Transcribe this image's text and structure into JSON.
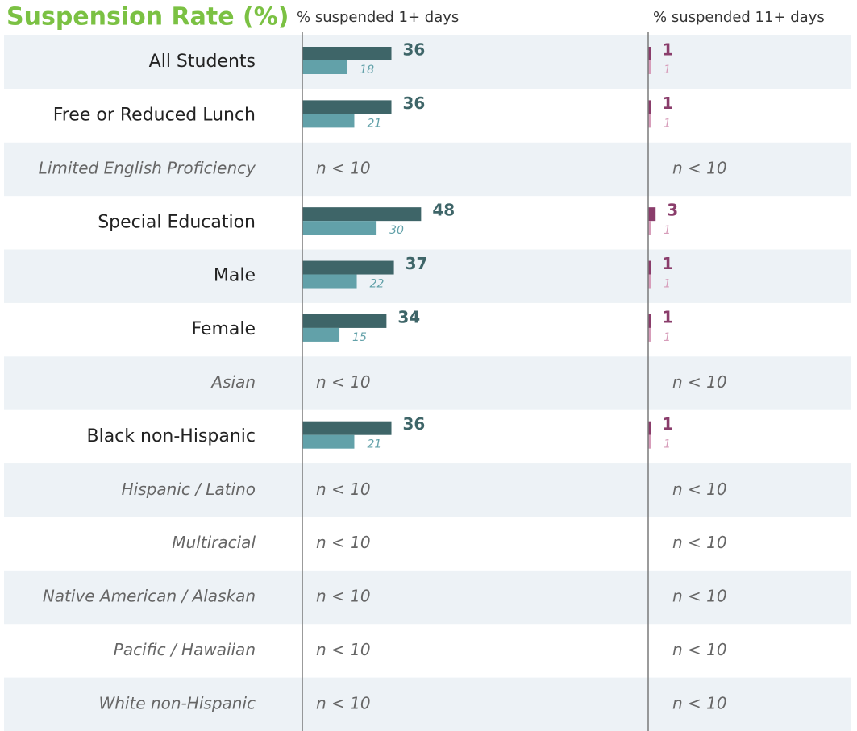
{
  "chart_data": {
    "type": "hbar-panels",
    "title": "Suspension Rate (%)",
    "categories": [
      "All Students",
      "Free or Reduced Lunch",
      "Limited English Proficiency",
      "Special Education",
      "Male",
      "Female",
      "Asian",
      "Black non-Hispanic",
      "Hispanic / Latino",
      "Multiracial",
      "Native American / Alaskan",
      "Pacific / Hawaiian",
      "White non-Hispanic"
    ],
    "suppressed_label": "n < 10",
    "xlim": [
      0,
      100
    ],
    "panels": [
      {
        "label": "% suspended 1+ days",
        "series": [
          {
            "color": "#3e6568",
            "values": [
              36,
              36,
              null,
              48,
              37,
              34,
              null,
              36,
              null,
              null,
              null,
              null,
              null
            ]
          },
          {
            "color": "#62a1a9",
            "values": [
              18,
              21,
              null,
              30,
              22,
              15,
              null,
              21,
              null,
              null,
              null,
              null,
              null
            ]
          }
        ]
      },
      {
        "label": "% suspended 11+ days",
        "series": [
          {
            "color": "#8a3d6b",
            "values": [
              1,
              1,
              null,
              3,
              1,
              1,
              null,
              1,
              null,
              null,
              null,
              null,
              null
            ]
          },
          {
            "color": "#d79dba",
            "values": [
              1,
              1,
              null,
              1,
              1,
              1,
              null,
              1,
              null,
              null,
              null,
              null,
              null
            ]
          }
        ]
      }
    ]
  }
}
